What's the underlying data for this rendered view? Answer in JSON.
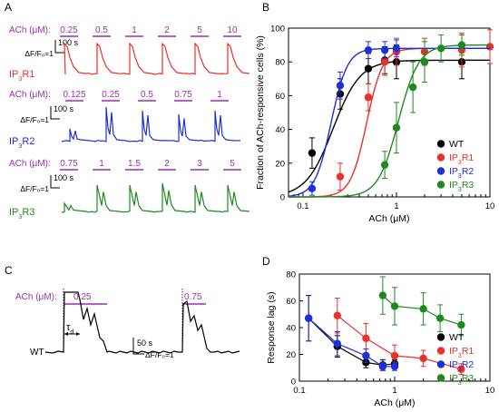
{
  "panel_a": {
    "letter": "A",
    "traces": [
      {
        "name": "IP3R1",
        "color": "#e8312a",
        "prefix": "ACh (μM):",
        "concentrations": [
          "0.25",
          "0.5",
          "1",
          "2",
          "5",
          "10"
        ],
        "scale_time": "100 s",
        "scale_ratio": "ΔF/F₀=1",
        "label_main": "IP",
        "label_sub": "3",
        "label_tail": "R1"
      },
      {
        "name": "IP3R2",
        "color": "#1f2fd8",
        "prefix": "ACh (μM):",
        "concentrations": [
          "0.125",
          "0.25",
          "0.5",
          "0.75",
          "1"
        ],
        "scale_time": "100 s",
        "scale_ratio": "ΔF/F₀=1",
        "label_main": "IP",
        "label_sub": "3",
        "label_tail": "R2"
      },
      {
        "name": "IP3R3",
        "color": "#1e8a1e",
        "prefix": "ACh (μM):",
        "concentrations": [
          "0.75",
          "1",
          "1.5",
          "2",
          "3",
          "5"
        ],
        "scale_time": "100 s",
        "scale_ratio": "ΔF/F₀=1",
        "label_main": "IP",
        "label_sub": "3",
        "label_tail": "R3"
      }
    ]
  },
  "panel_c": {
    "letter": "C",
    "prefix": "ACh (μM):",
    "conc_1": "0.25",
    "conc_2": "0.75",
    "tau": "τ",
    "tau_sub": "d",
    "scale_time": "50 s",
    "scale_ratio": "ΔF/F₀=1",
    "trace_label": "WT"
  },
  "colors": {
    "WT": "#000000",
    "IP3R1": "#e8312a",
    "IP3R2": "#1f2fd8",
    "IP3R3": "#1e8a1e",
    "stimulus": "#9b2fae"
  },
  "chart_data": [
    {
      "panel": "B",
      "type": "scatter",
      "xlabel": "ACh (μM)",
      "ylabel": "Fraction of ACh-responsive cells (%)",
      "xscale": "log",
      "xlim": [
        0.07,
        10
      ],
      "ylim": [
        0,
        100
      ],
      "xticks": [
        0.1,
        1,
        10
      ],
      "xtick_labels": [
        "0.1",
        "1",
        "10"
      ],
      "yticks": [
        0,
        20,
        40,
        60,
        80,
        100
      ],
      "legend_position": "bottom-right",
      "series": [
        {
          "name": "WT",
          "label_main": "WT",
          "label_sub": "",
          "label_tail": "",
          "color": "#000000",
          "x": [
            0.125,
            0.25,
            0.5,
            0.75,
            1,
            5
          ],
          "y": [
            26,
            61,
            76,
            81,
            80,
            80
          ],
          "err": [
            9,
            9,
            9,
            8,
            10,
            10
          ],
          "fit": {
            "bottom": 0,
            "top": 81,
            "ec50": 0.21,
            "hill": 3.0
          }
        },
        {
          "name": "IP3R1",
          "label_main": "IP",
          "label_sub": "3",
          "label_tail": "R1",
          "color": "#e8312a",
          "x": [
            0.25,
            0.5,
            0.75,
            1,
            2,
            5,
            10
          ],
          "y": [
            12,
            59,
            80,
            86,
            86,
            87,
            89
          ],
          "err": [
            8,
            8,
            8,
            8,
            8,
            10,
            10
          ],
          "fit": {
            "bottom": 0,
            "top": 88,
            "ec50": 0.48,
            "hill": 5.0
          }
        },
        {
          "name": "IP3R2",
          "label_main": "IP",
          "label_sub": "3",
          "label_tail": "R2",
          "color": "#1f2fd8",
          "x": [
            0.125,
            0.25,
            0.5,
            0.75,
            1
          ],
          "y": [
            5,
            66,
            87,
            87,
            88
          ],
          "err": [
            4,
            8,
            5,
            5,
            5
          ],
          "fit": {
            "bottom": 0,
            "top": 88,
            "ec50": 0.2,
            "hill": 5.0
          }
        },
        {
          "name": "IP3R3",
          "label_main": "IP",
          "label_sub": "3",
          "label_tail": "R3",
          "color": "#1e8a1e",
          "x": [
            0.75,
            1,
            1.5,
            2,
            3,
            5
          ],
          "y": [
            19,
            41,
            65,
            80,
            88,
            90
          ],
          "err": [
            8,
            15,
            15,
            12,
            8,
            6
          ],
          "fit": {
            "bottom": 0,
            "top": 90,
            "ec50": 1.05,
            "hill": 4.0
          }
        }
      ]
    },
    {
      "panel": "D",
      "type": "line",
      "xlabel": "ACh (μM)",
      "ylabel": "Response lag (s)",
      "xscale": "log",
      "xlim": [
        0.1,
        10
      ],
      "ylim": [
        0,
        80
      ],
      "xticks": [
        0.1,
        1,
        10
      ],
      "xtick_labels": [
        "0.1",
        "1",
        "10"
      ],
      "yticks": [
        0,
        20,
        40,
        60,
        80
      ],
      "legend_position": "bottom-right",
      "series": [
        {
          "name": "WT",
          "label_main": "WT",
          "label_sub": "",
          "label_tail": "",
          "color": "#000000",
          "x": [
            0.125,
            0.25,
            0.5,
            0.75,
            1
          ],
          "y": [
            47,
            26,
            14,
            12,
            13
          ],
          "err": [
            17,
            8,
            4,
            4,
            3
          ]
        },
        {
          "name": "IP3R1",
          "label_main": "IP",
          "label_sub": "3",
          "label_tail": "R1",
          "color": "#e8312a",
          "x": [
            0.25,
            0.5,
            1,
            2,
            5
          ],
          "y": [
            49,
            32,
            19,
            17,
            9
          ],
          "err": [
            13,
            11,
            8,
            6,
            4
          ]
        },
        {
          "name": "IP3R2",
          "label_main": "IP",
          "label_sub": "3",
          "label_tail": "R2",
          "color": "#1f2fd8",
          "x": [
            0.125,
            0.25,
            0.5,
            0.75,
            1
          ],
          "y": [
            47,
            28,
            19,
            11,
            11
          ],
          "err": [
            17,
            9,
            5,
            3,
            3
          ]
        },
        {
          "name": "IP3R3",
          "label_main": "IP",
          "label_sub": "3",
          "label_tail": "R3",
          "color": "#1e8a1e",
          "x": [
            0.75,
            1,
            2,
            3,
            5
          ],
          "y": [
            64,
            56,
            54,
            47,
            42
          ],
          "err": [
            14,
            14,
            12,
            10,
            8
          ]
        }
      ]
    }
  ]
}
